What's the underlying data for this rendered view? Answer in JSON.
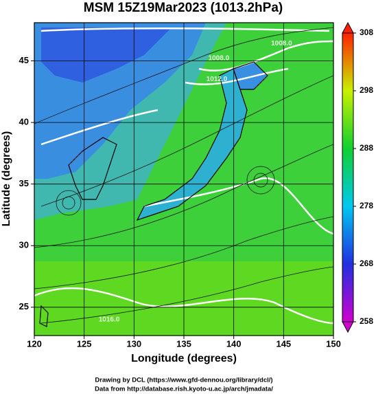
{
  "chart_data": {
    "type": "map",
    "title": "MSM 15Z19Mar2023 (1013.2hPa)",
    "xlabel": "Longitude (degrees)",
    "ylabel": "Latitude  (degrees)",
    "xlim": [
      120,
      150
    ],
    "ylim": [
      22.7,
      48.1
    ],
    "xticks": [
      120,
      125,
      130,
      135,
      140,
      145,
      150
    ],
    "yticks": [
      25,
      30,
      35,
      40,
      45
    ],
    "grid": true,
    "colorbar": {
      "lim": [
        258,
        308
      ],
      "ticks": [
        258,
        268,
        278,
        288,
        298,
        308
      ],
      "colors": [
        "#d000d0",
        "#2030e0",
        "#00c8f0",
        "#10d030",
        "#c8f000",
        "#ff2000"
      ]
    },
    "contour_labels": [
      {
        "text": "1008.0",
        "lon": 144.8,
        "lat": 46.4
      },
      {
        "text": "1008.0",
        "lon": 138.5,
        "lat": 45.2
      },
      {
        "text": "1012.0",
        "lon": 138.3,
        "lat": 43.5
      },
      {
        "text": "1016.0",
        "lon": 127.5,
        "lat": 24.0
      }
    ],
    "credits": [
      "Drawing by DCL (https://www.gfd-dennou.org/library/dcl/)",
      "Data from http://database.rish.kyoto-u.ac.jp/arch/jmadata/"
    ]
  }
}
